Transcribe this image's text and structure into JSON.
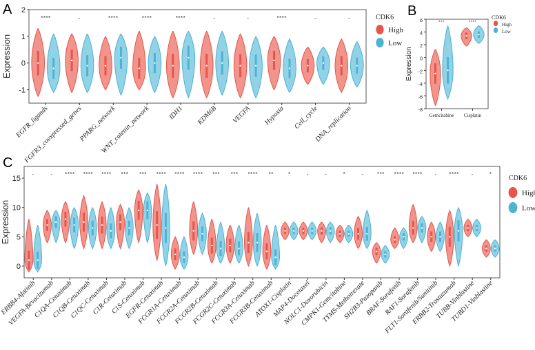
{
  "colors": {
    "high": "#e8534a",
    "low": "#4bb3d3",
    "high_fill": "#f08a80",
    "low_fill": "#86cde3"
  },
  "chart_data": [
    {
      "panel": "A",
      "type": "violin",
      "ylabel": "Expression",
      "ylim": [
        -1.5,
        2
      ],
      "yticks": [
        -1,
        0,
        1,
        2
      ],
      "legend": {
        "title": "CDK6",
        "entries": [
          "High",
          "Low"
        ]
      },
      "categories": [
        "EGFR_ligands",
        "FGFR3_coexpressed_genes",
        "PPARG_network",
        "WNT_catenin_network",
        "IDH1",
        "KDM6B",
        "VEGFA",
        "Hypoxia",
        "Cell_cycle",
        "DNA_replication"
      ],
      "significance": [
        "****",
        "-",
        "****",
        "****",
        "****",
        "-",
        "-",
        "****",
        "-",
        "-"
      ],
      "series": [
        {
          "name": "High",
          "median": [
            0.0,
            0.1,
            -0.1,
            -0.2,
            -0.1,
            -0.1,
            -0.1,
            0.1,
            -0.1,
            -0.1
          ],
          "min": [
            -1.25,
            -1.1,
            -1.0,
            -1.0,
            -1.3,
            -1.3,
            -1.3,
            -1.0,
            -0.8,
            -1.1
          ],
          "max": [
            1.3,
            1.1,
            1.0,
            1.2,
            1.2,
            1.2,
            1.1,
            1.0,
            0.6,
            0.9
          ]
        },
        {
          "name": "Low",
          "median": [
            -0.2,
            -0.1,
            0.2,
            0.0,
            0.2,
            0.0,
            -0.1,
            -0.2,
            0.0,
            -0.1
          ],
          "min": [
            -1.1,
            -1.1,
            -1.2,
            -1.1,
            -1.3,
            -1.2,
            -1.3,
            -1.1,
            -0.8,
            -0.9
          ],
          "max": [
            1.1,
            1.1,
            1.1,
            1.0,
            1.2,
            1.2,
            1.0,
            0.9,
            0.6,
            0.8
          ]
        }
      ]
    },
    {
      "panel": "B",
      "type": "violin",
      "ylabel": "Expression",
      "ylim": [
        -8,
        6
      ],
      "yticks": [
        -8,
        -6,
        -4,
        -2,
        0,
        2,
        4,
        6
      ],
      "legend": {
        "title": "CDK6",
        "entries": [
          "High",
          "Low"
        ]
      },
      "categories": [
        "Gemcitabine",
        "Cisplatin"
      ],
      "significance": [
        "***",
        "****"
      ],
      "series": [
        {
          "name": "High",
          "median": [
            -2.5,
            3.4
          ],
          "min": [
            -7.5,
            1.8
          ],
          "max": [
            1.3,
            4.7
          ]
        },
        {
          "name": "Low",
          "median": [
            -2.0,
            3.6
          ],
          "min": [
            -6.5,
            2.2
          ],
          "max": [
            5.0,
            5.0
          ]
        }
      ]
    },
    {
      "panel": "C",
      "type": "violin",
      "ylabel": "Expression",
      "ylim": [
        -2,
        17
      ],
      "yticks": [
        0,
        5,
        10,
        15
      ],
      "legend": {
        "title": "CDK6",
        "entries": [
          "High",
          "Low"
        ]
      },
      "categories": [
        "ERBB4-Afatinib",
        "VEGFA-Bevacizumab",
        "C1QA-Cetuximab",
        "C1QB-Cetuximab",
        "C1QC-Cetuximab",
        "C1R-Cetuximab",
        "C1S-Cetuximab",
        "EGFR-Cetuximab",
        "FCGR1A-Cetuximab",
        "FCGR2A-Cetuximab",
        "FCGR2B-Cetuximab",
        "FCGR2C-Cetuximab",
        "FCGR3A-Cetuximab",
        "FCGR3B-Cetuximab",
        "ATOX1-Cisplatin",
        "MAP4-Docetaxel",
        "NOLC1-Doxorubicin",
        "CMPK1-Gemcitabine",
        "TYMS-Methotrexate",
        "SH2B3-Pazopanib",
        "BRAF-Sorafenib",
        "RAF1-Sorafenib",
        "FLT1-Sorafenib/Sunitinib",
        "ERBB2-Trastuzumab",
        "TUBB-Vinblastine",
        "TUBD1-Vinblastine"
      ],
      "significance": [
        "-",
        "-",
        "****",
        "****",
        "****",
        "***",
        "***",
        "****",
        "****",
        "****",
        "***",
        "***",
        "****",
        "**",
        "*",
        "-",
        "-",
        "*",
        "-",
        "***",
        "****",
        "****",
        "-",
        "****",
        "-",
        "*"
      ],
      "series": [
        {
          "name": "High",
          "median": [
            1.0,
            7.0,
            8.0,
            7.5,
            7.0,
            7.5,
            9.5,
            7.0,
            2.0,
            6.0,
            3.5,
            3.5,
            4.0,
            2.5,
            6.0,
            6.0,
            6.0,
            5.5,
            5.5,
            2.5,
            4.5,
            6.5,
            5.0,
            5.0,
            6.5,
            3.0
          ],
          "min": [
            -1.0,
            4.0,
            4.0,
            3.0,
            3.0,
            3.0,
            4.0,
            1.0,
            -0.5,
            2.0,
            0.5,
            0.5,
            0.0,
            -0.5,
            4.5,
            4.5,
            4.0,
            4.0,
            3.0,
            0.5,
            3.0,
            4.0,
            2.5,
            0.0,
            5.0,
            1.5
          ],
          "max": [
            8.0,
            9.5,
            11.0,
            12.0,
            11.0,
            10.5,
            13.0,
            14.0,
            5.0,
            11.0,
            8.0,
            7.0,
            10.0,
            7.0,
            7.5,
            7.5,
            7.5,
            7.0,
            8.5,
            4.0,
            6.5,
            10.5,
            7.5,
            9.5,
            8.0,
            4.5
          ]
        },
        {
          "name": "Low",
          "median": [
            1.0,
            7.5,
            7.0,
            6.5,
            6.0,
            6.5,
            9.5,
            6.5,
            1.5,
            5.5,
            3.0,
            3.0,
            4.0,
            1.5,
            6.0,
            6.0,
            6.0,
            5.5,
            5.5,
            2.0,
            5.0,
            6.5,
            5.0,
            6.0,
            6.5,
            3.0
          ],
          "min": [
            -1.0,
            4.0,
            3.0,
            3.0,
            3.0,
            3.0,
            4.0,
            0.0,
            -0.5,
            2.0,
            0.5,
            0.5,
            0.0,
            -0.5,
            4.5,
            4.5,
            4.0,
            4.0,
            3.0,
            0.5,
            3.0,
            4.0,
            2.5,
            0.0,
            5.0,
            1.5
          ],
          "max": [
            7.0,
            9.5,
            10.0,
            10.0,
            10.0,
            10.0,
            12.5,
            14.0,
            5.0,
            9.0,
            7.5,
            7.0,
            9.0,
            7.0,
            7.5,
            7.5,
            7.5,
            7.0,
            9.5,
            3.5,
            6.5,
            8.5,
            7.5,
            10.0,
            8.0,
            4.5
          ]
        }
      ]
    }
  ]
}
